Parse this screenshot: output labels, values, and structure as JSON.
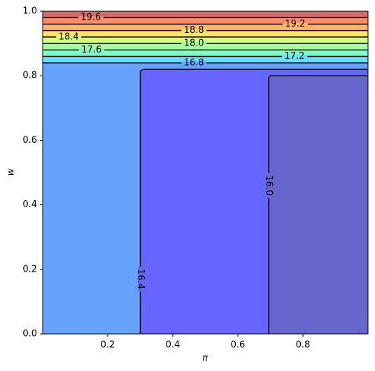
{
  "chart_data": {
    "type": "contour",
    "xlabel": "π",
    "ylabel": "w",
    "xlim": [
      0,
      1
    ],
    "ylim": [
      0,
      1
    ],
    "xticks": [
      0.2,
      0.4,
      0.6,
      0.8
    ],
    "yticks": [
      {
        "value": 0,
        "label": "0.0"
      },
      0.2,
      0.4,
      0.6,
      0.8,
      {
        "value": 1,
        "label": "1.0"
      }
    ],
    "top_color": "#d26a6a",
    "contours": [
      {
        "level": {
          "value": 19.6,
          "label": "19.6"
        },
        "color": "#ff8c66",
        "x": [
          0,
          1
        ],
        "y": [
          0.98,
          0.98
        ]
      },
      {
        "level": {
          "value": 19.2,
          "label": "19.2"
        },
        "color": "#ffb866",
        "x": [
          0,
          1
        ],
        "y": [
          0.96,
          0.96
        ]
      },
      {
        "level": {
          "value": 18.8,
          "label": "18.8"
        },
        "color": "#ffe466",
        "x": [
          0,
          1
        ],
        "y": [
          0.94,
          0.94
        ]
      },
      {
        "level": {
          "value": 18.4,
          "label": "18.4"
        },
        "color": "#d4ff7a",
        "x": [
          0,
          1
        ],
        "y": [
          0.92,
          0.92
        ]
      },
      {
        "level": {
          "value": 18,
          "label": "18.0"
        },
        "color": "#a3ff9c",
        "x": [
          0,
          1
        ],
        "y": [
          0.9,
          0.9
        ]
      },
      {
        "level": {
          "value": 17.6,
          "label": "17.6"
        },
        "color": "#7dffc8",
        "x": [
          0,
          1
        ],
        "y": [
          0.88,
          0.88
        ]
      },
      {
        "level": {
          "value": 17.2,
          "label": "17.2"
        },
        "color": "#66e0ff",
        "x": [
          0,
          1
        ],
        "y": [
          0.86,
          0.86
        ]
      },
      {
        "level": {
          "value": 16.8,
          "label": "16.8"
        },
        "color": "#66a3ff",
        "x": [
          0,
          1
        ],
        "y": [
          0.84,
          0.84
        ]
      },
      {
        "level": {
          "value": 16.4,
          "label": "16.4"
        },
        "color": "#6666ff",
        "x": [
          0.3,
          0.3,
          0.31,
          1
        ],
        "y": [
          0,
          0.815,
          0.82,
          0.82
        ]
      },
      {
        "level": {
          "value": 16,
          "label": "16.0"
        },
        "color": "#6666cc",
        "x": [
          0.695,
          0.695,
          0.7,
          1
        ],
        "y": [
          0,
          0.795,
          0.8,
          0.8
        ]
      }
    ]
  }
}
